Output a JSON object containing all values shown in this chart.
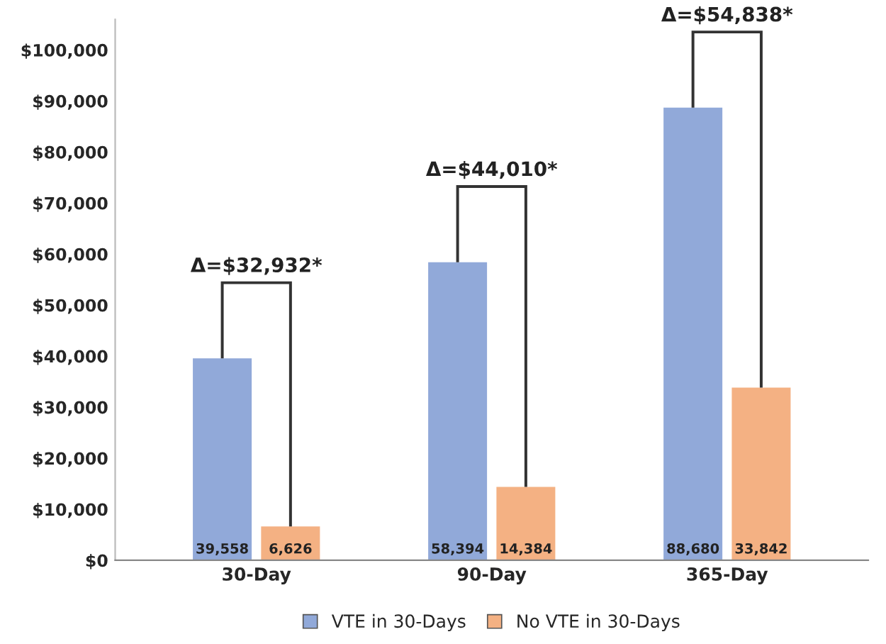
{
  "chart_data": {
    "type": "bar",
    "categories": [
      "30-Day",
      "90-Day",
      "365-Day"
    ],
    "series": [
      {
        "name": "VTE in 30-Days",
        "color": "#91a9d9",
        "values": [
          39558,
          58394,
          88680
        ],
        "value_labels": [
          "39,558",
          "58,394",
          "88,680"
        ]
      },
      {
        "name": "No VTE in 30-Days",
        "color": "#f4b183",
        "values": [
          6626,
          14384,
          33842
        ],
        "value_labels": [
          "6,626",
          "14,384",
          "33,842"
        ]
      }
    ],
    "annotations": [
      "Δ=$32,932*",
      "Δ=$44,010*",
      "Δ=$54,838*"
    ],
    "ylim": [
      0,
      106000
    ],
    "yticks": [
      {
        "value": 0,
        "label": "$0"
      },
      {
        "value": 10000,
        "label": "$10,000"
      },
      {
        "value": 20000,
        "label": "$20,000"
      },
      {
        "value": 30000,
        "label": "$30,000"
      },
      {
        "value": 40000,
        "label": "$40,000"
      },
      {
        "value": 50000,
        "label": "$50,000"
      },
      {
        "value": 60000,
        "label": "$60,000"
      },
      {
        "value": 70000,
        "label": "$70,000"
      },
      {
        "value": 80000,
        "label": "$80,000"
      },
      {
        "value": 90000,
        "label": "$90,000"
      },
      {
        "value": 100000,
        "label": "$100,000"
      }
    ],
    "legend": "bottom",
    "grid": false
  }
}
